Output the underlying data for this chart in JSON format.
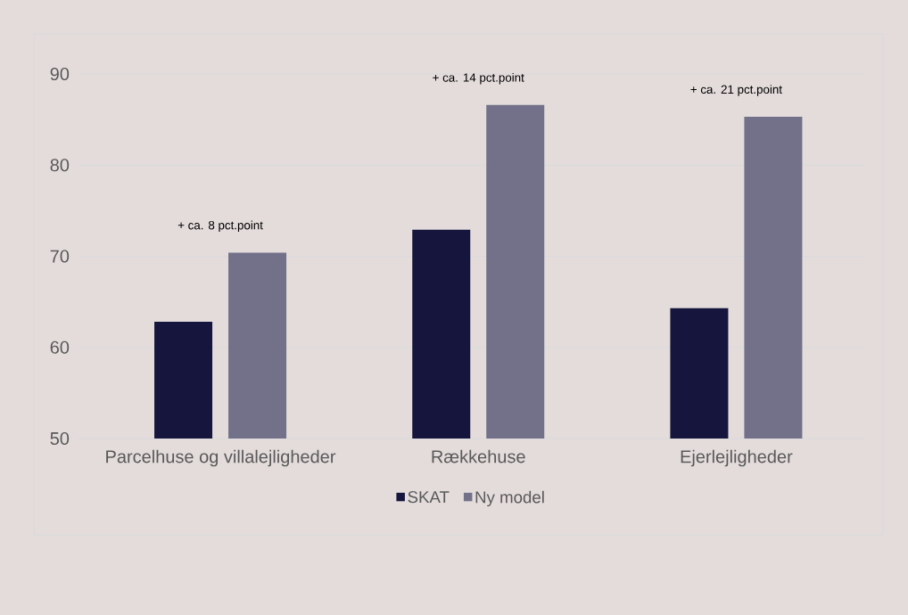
{
  "chart_data": {
    "type": "bar",
    "categories": [
      "Parcelhuse og villalejligheder",
      "Rækkehuse",
      "Ejerlejligheder"
    ],
    "series": [
      {
        "name": "SKAT",
        "color": "#15153d",
        "values": [
          62.8,
          72.9,
          64.3
        ]
      },
      {
        "name": "Ny model",
        "color": "#727189",
        "values": [
          70.4,
          86.6,
          85.3
        ]
      }
    ],
    "ylim": [
      50,
      90
    ],
    "yticks": [
      50,
      60,
      70,
      80,
      90
    ],
    "grid": "y",
    "legend": "bottom",
    "annotations": [
      "+ ca. 8 pct.point",
      "+ ca. 14 pct.point",
      "+ ca. 21 pct.point"
    ]
  }
}
